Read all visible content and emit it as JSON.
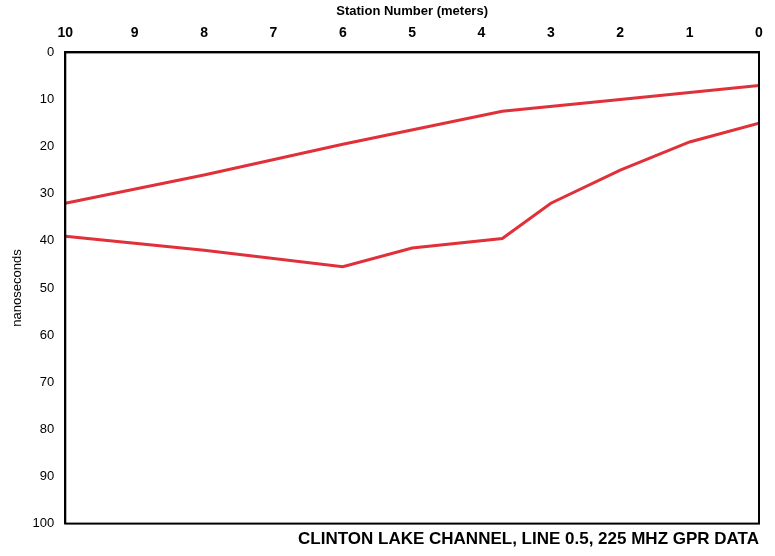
{
  "chart_data": {
    "type": "line",
    "title": "CLINTON LAKE CHANNEL, LINE 0.5, 225 MHZ GPR DATA",
    "x_label": "Station Number (meters)",
    "y_label": "nanoseconds",
    "xlim": [
      10,
      0
    ],
    "xticks": [
      0,
      1,
      2,
      3,
      4,
      5,
      6,
      7,
      8,
      9,
      10
    ],
    "ylim": [
      100,
      0
    ],
    "yticks": [
      0,
      10,
      20,
      30,
      40,
      50,
      60,
      70,
      80,
      90,
      100
    ],
    "grid": false,
    "series": [
      {
        "color": "#e0303a",
        "line_style": "solid",
        "x": [
          10,
          8,
          6,
          3.7,
          2,
          0
        ],
        "values": [
          32,
          26,
          19.5,
          12.5,
          10,
          7
        ]
      },
      {
        "color": "#e0303a",
        "line_style": "solid",
        "x": [
          10,
          8,
          6,
          5,
          3.7,
          3,
          2,
          1,
          0
        ],
        "values": [
          39,
          42,
          45.5,
          41.5,
          39.5,
          32,
          25,
          19,
          15
        ]
      }
    ]
  }
}
